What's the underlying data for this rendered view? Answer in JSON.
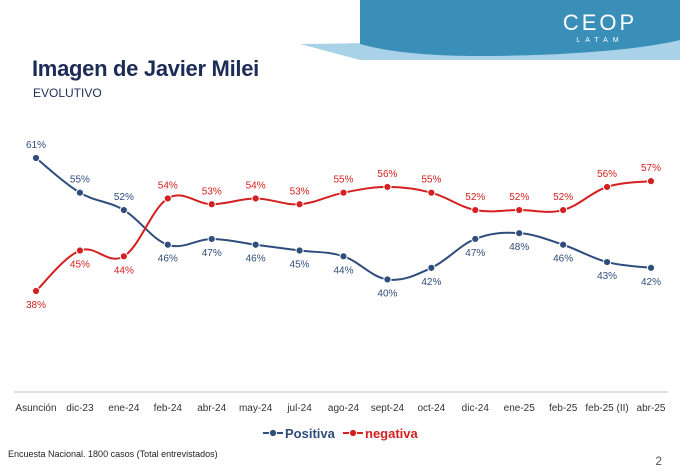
{
  "header": {
    "title": "Imagen de Javier Milei",
    "subtitle": "EVOLUTIVO",
    "logo_text": "CEOP",
    "logo_sub": "LATAM"
  },
  "footer": {
    "source": "Encuesta Nacional. 1800 casos (Total entrevistados)",
    "page_number": "2"
  },
  "colors": {
    "positiva": "#2e4d7b",
    "negativa": "#d42020",
    "banner": "#3a8fb8"
  },
  "chart_data": {
    "type": "line",
    "categories": [
      "Asunción",
      "dic-23",
      "ene-24",
      "feb-24",
      "abr-24",
      "may-24",
      "jul-24",
      "ago-24",
      "sept-24",
      "oct-24",
      "dic-24",
      "ene-25",
      "feb-25",
      "feb-25 (II)",
      "abr-25"
    ],
    "series": [
      {
        "name": "Positiva",
        "values": [
          61,
          55,
          52,
          46,
          47,
          46,
          45,
          44,
          40,
          42,
          47,
          48,
          46,
          43,
          42
        ],
        "labels": [
          "61%",
          "55%",
          "52%",
          "46%",
          "47%",
          "46%",
          "45%",
          "44%",
          "40%",
          "42%",
          "47%",
          "48%",
          "46%",
          "43%",
          "42%"
        ]
      },
      {
        "name": "negativa",
        "values": [
          38,
          45,
          44,
          54,
          53,
          54,
          53,
          55,
          56,
          55,
          52,
          52,
          52,
          56,
          57
        ],
        "labels": [
          "38%",
          "45%",
          "44%",
          "54%",
          "53%",
          "54%",
          "53%",
          "55%",
          "56%",
          "55%",
          "52%",
          "52%",
          "52%",
          "56%",
          "57%"
        ]
      }
    ],
    "legend_position": "bottom",
    "grid": false
  }
}
